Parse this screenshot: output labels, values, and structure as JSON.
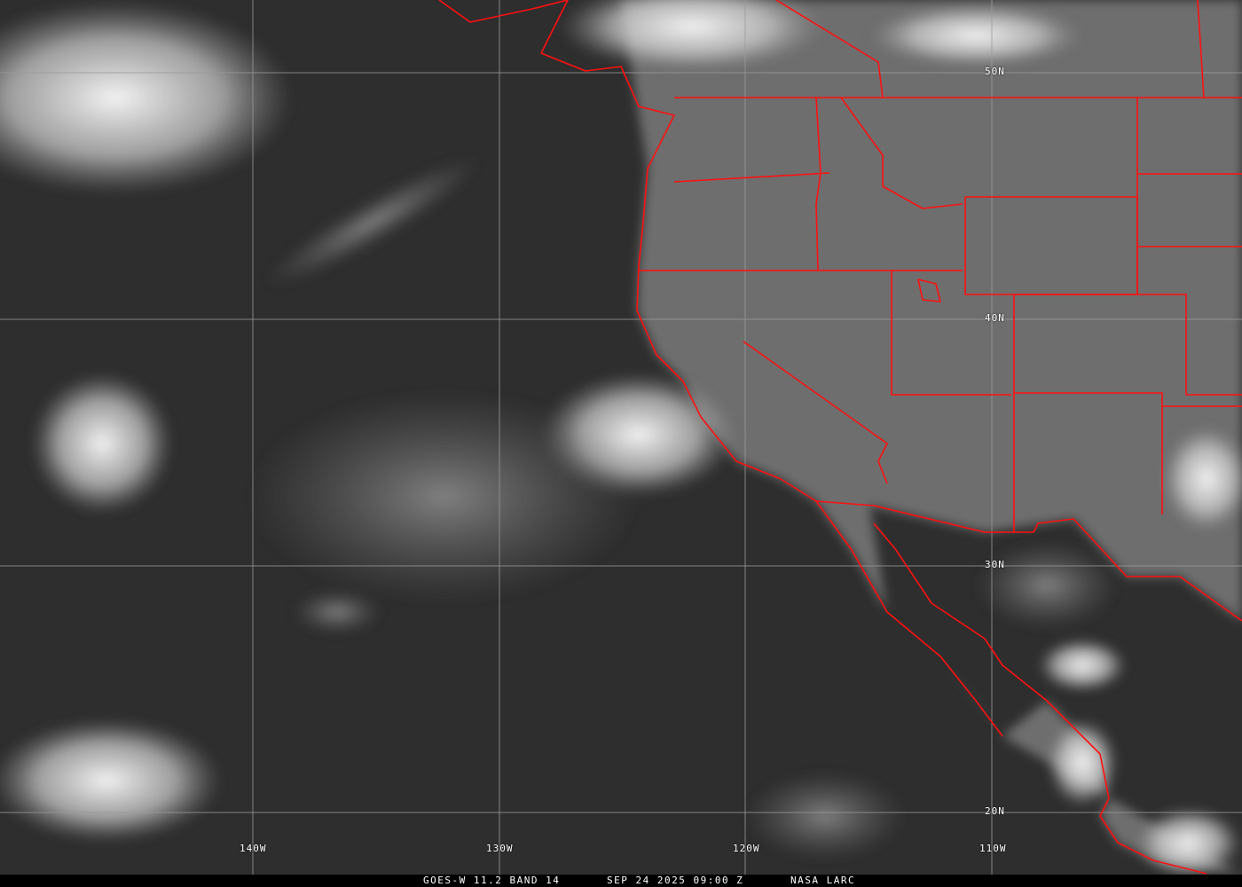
{
  "caption": {
    "product": "GOES-W 11.2 BAND 14",
    "datetime": "SEP 24 2025 09:00 Z",
    "credit": "NASA LARC"
  },
  "grid": {
    "latitude_labels": [
      "50N",
      "40N",
      "30N",
      "20N"
    ],
    "longitude_labels": [
      "140W",
      "130W",
      "120W",
      "110W"
    ]
  },
  "colors": {
    "borders": "#ff1010",
    "grid": "#9a9a9a"
  }
}
